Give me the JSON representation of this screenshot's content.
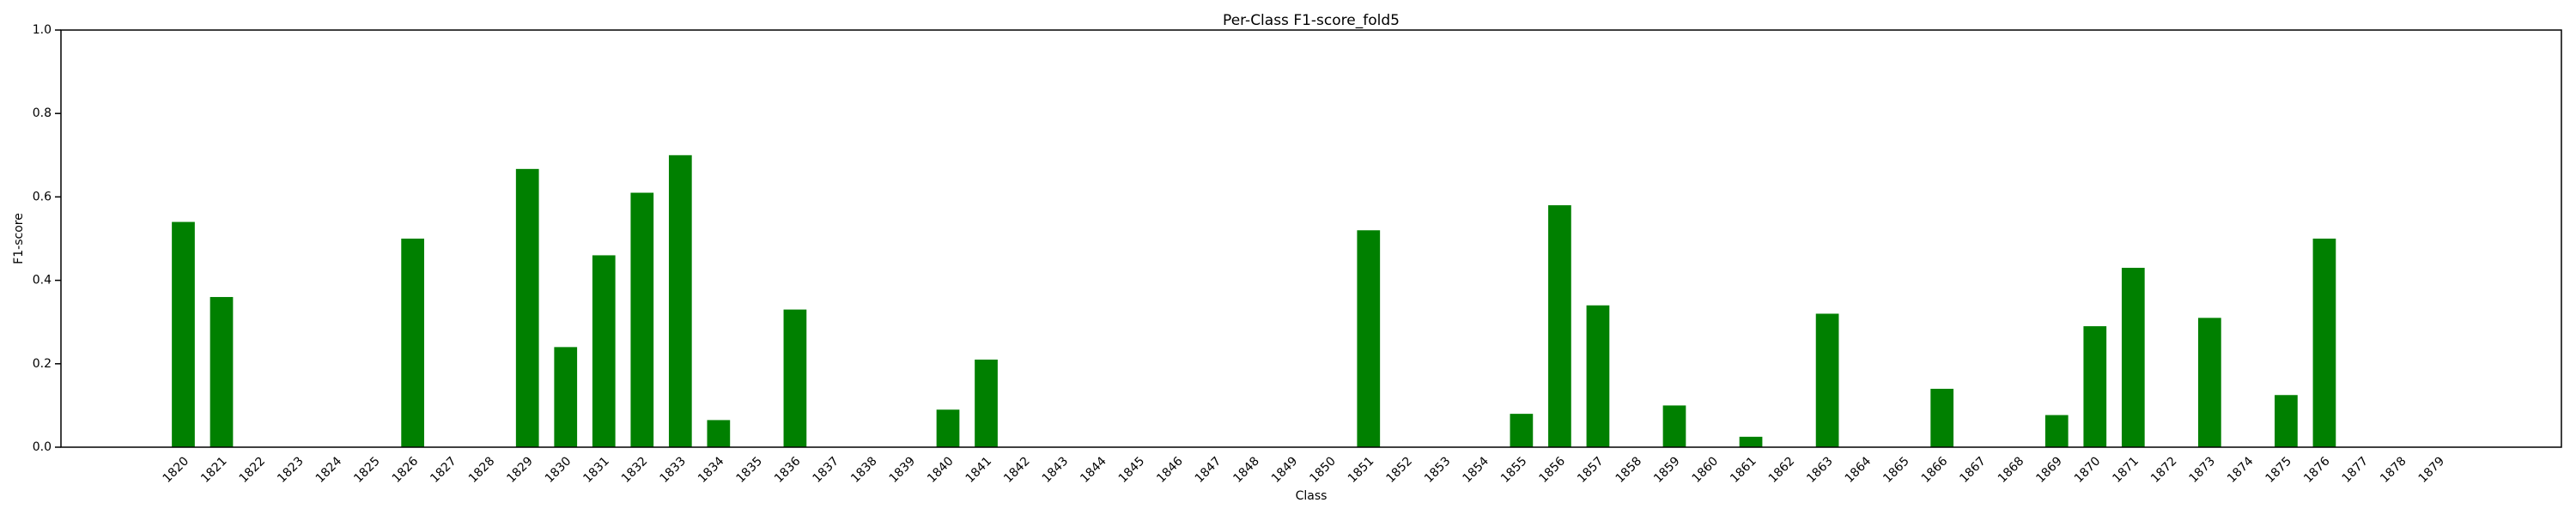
{
  "chart_data": {
    "type": "bar",
    "title": "Per-Class F1-score_fold5",
    "x_label": "Class",
    "y_label": "F1-score",
    "categories": [
      "1820",
      "1821",
      "1822",
      "1823",
      "1824",
      "1825",
      "1826",
      "1827",
      "1828",
      "1829",
      "1830",
      "1831",
      "1832",
      "1833",
      "1834",
      "1835",
      "1836",
      "1837",
      "1838",
      "1839",
      "1840",
      "1841",
      "1842",
      "1843",
      "1844",
      "1845",
      "1846",
      "1847",
      "1848",
      "1849",
      "1850",
      "1851",
      "1852",
      "1853",
      "1854",
      "1855",
      "1856",
      "1857",
      "1858",
      "1859",
      "1860",
      "1861",
      "1862",
      "1863",
      "1864",
      "1865",
      "1866",
      "1867",
      "1868",
      "1869",
      "1870",
      "1871",
      "1872",
      "1873",
      "1874",
      "1875",
      "1876",
      "1877",
      "1878",
      "1879"
    ],
    "values": [
      0.54,
      0.36,
      0,
      0,
      0,
      0,
      0.5,
      0,
      0,
      0.667,
      0.24,
      0.46,
      0.61,
      0.7,
      0.065,
      0,
      0.33,
      0,
      0,
      0,
      0.09,
      0.21,
      0,
      0,
      0,
      0,
      0,
      0,
      0,
      0,
      0,
      0.52,
      0,
      0,
      0,
      0.08,
      0.58,
      0.34,
      0,
      0.1,
      0,
      0.025,
      0,
      0.32,
      0,
      0,
      0.14,
      0,
      0,
      0.077,
      0.29,
      0.43,
      0,
      0.31,
      0,
      0.125,
      0.5,
      0,
      0,
      0
    ],
    "color": "#008000",
    "ylim": [
      0,
      1
    ],
    "yticks": [
      {
        "value": 0,
        "label": "0.0"
      },
      0.2,
      0.4,
      0.6,
      0.8,
      {
        "value": 1,
        "label": "1.0"
      }
    ],
    "grid": false
  }
}
